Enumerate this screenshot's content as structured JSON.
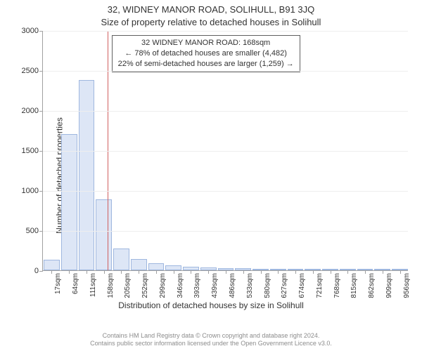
{
  "title_main": "32, WIDNEY MANOR ROAD, SOLIHULL, B91 3JQ",
  "title_sub": "Size of property relative to detached houses in Solihull",
  "y_axis_label": "Number of detached properties",
  "x_axis_label": "Distribution of detached houses by size in Solihull",
  "chart": {
    "type": "histogram",
    "ymax": 3000,
    "ytick_step": 500,
    "bar_fill": "#dde6f6",
    "bar_border": "#9fb7df",
    "grid_color": "#eeeeee",
    "axis_color": "#a0a0a0",
    "ref_line_color": "#d06060",
    "ref_line_x_index": 3.2,
    "x_labels": [
      "17sqm",
      "64sqm",
      "111sqm",
      "158sqm",
      "205sqm",
      "252sqm",
      "299sqm",
      "346sqm",
      "393sqm",
      "439sqm",
      "486sqm",
      "533sqm",
      "580sqm",
      "627sqm",
      "674sqm",
      "721sqm",
      "768sqm",
      "815sqm",
      "862sqm",
      "909sqm",
      "956sqm"
    ],
    "values": [
      130,
      1700,
      2380,
      890,
      270,
      140,
      90,
      60,
      40,
      35,
      30,
      25,
      18,
      12,
      8,
      6,
      5,
      4,
      3,
      2,
      2
    ]
  },
  "info_box": {
    "line1": "32 WIDNEY MANOR ROAD: 168sqm",
    "line2": "← 78% of detached houses are smaller (4,482)",
    "line3": "22% of semi-detached houses are larger (1,259) →"
  },
  "footer": {
    "line1": "Contains HM Land Registry data © Crown copyright and database right 2024.",
    "line2": "Contains public sector information licensed under the Open Government Licence v3.0."
  }
}
